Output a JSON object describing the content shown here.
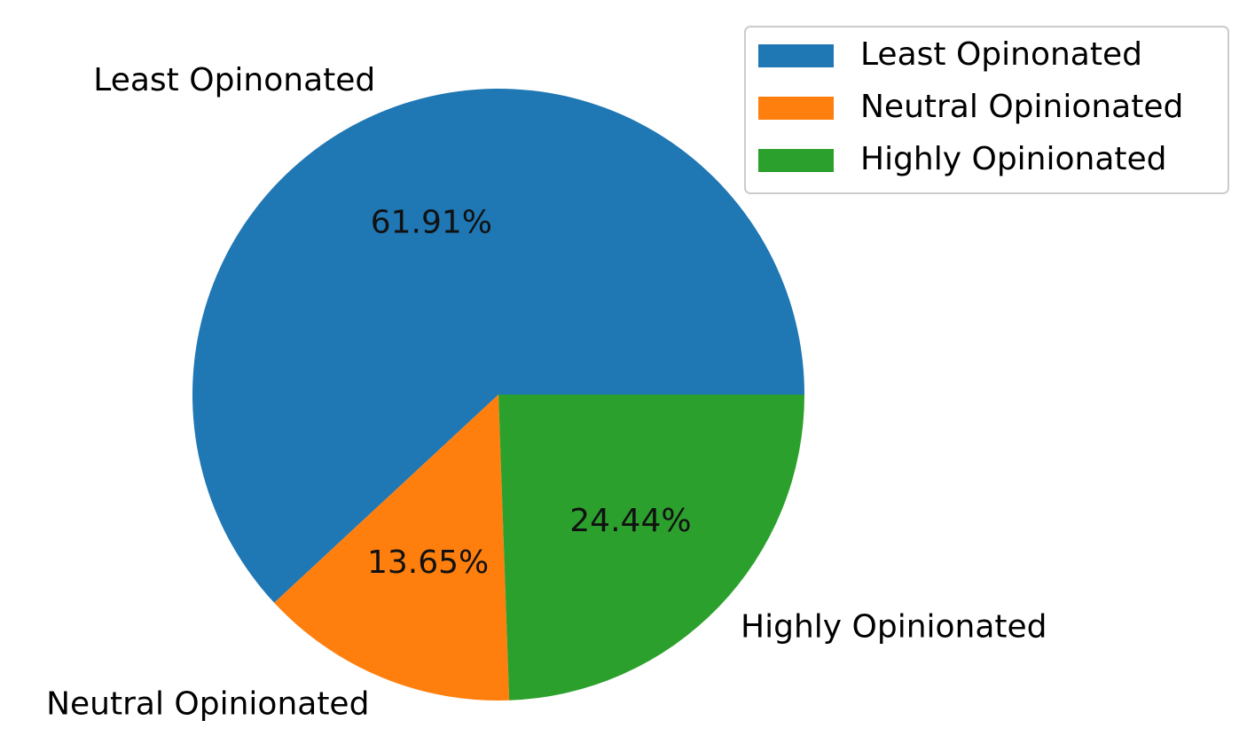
{
  "chart_data": {
    "type": "pie",
    "categories": [
      "Least Opinonated",
      "Neutral Opinionated",
      "Highly Opinionated"
    ],
    "values": [
      61.91,
      13.65,
      24.44
    ],
    "value_labels": [
      "61.91%",
      "13.65%",
      "24.44%"
    ],
    "colors": [
      "#1f77b4",
      "#ff7f0e",
      "#2ca02c"
    ],
    "legend": "upper right"
  }
}
